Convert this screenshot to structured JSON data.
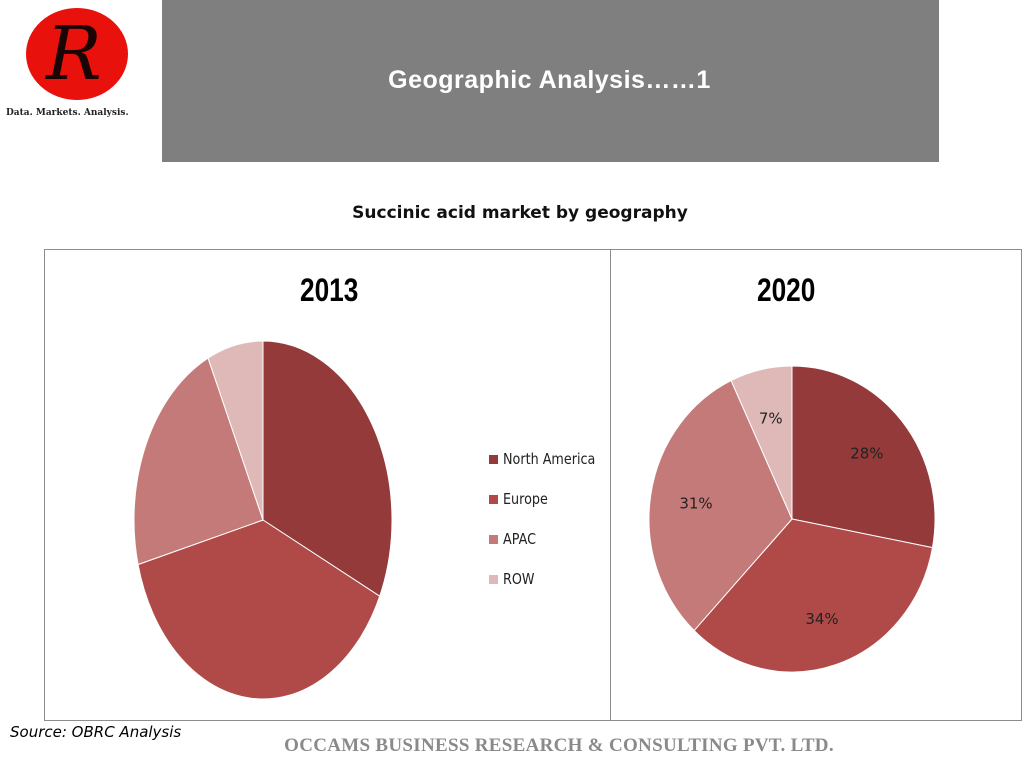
{
  "logo": {
    "letter": "R",
    "tagline": "Data. Markets. Analysis."
  },
  "header": {
    "title": "Geographic Analysis……1"
  },
  "subtitle": "Succinic acid market by geography",
  "source": "Source: OBRC Analysis",
  "footer": "OCCAMS BUSINESS RESEARCH & CONSULTING PVT. LTD.",
  "chart_data": [
    {
      "type": "pie",
      "title": "2013",
      "categories": [
        "North America",
        "Europe",
        "APAC",
        "ROW"
      ],
      "values": [
        32,
        39,
        22,
        7
      ],
      "data_labels": false,
      "colors": [
        "#943a3a",
        "#b04a48",
        "#c47a78",
        "#dfb9b8"
      ],
      "legend": {
        "entries": [
          "North America",
          "Europe",
          "APAC",
          "ROW"
        ],
        "position": "right"
      }
    },
    {
      "type": "pie",
      "title": "2020",
      "categories": [
        "North America",
        "Europe",
        "APAC",
        "ROW"
      ],
      "values": [
        28,
        34,
        31,
        7
      ],
      "data_labels": true,
      "labels": [
        "28%",
        "34%",
        "31%",
        "7%"
      ],
      "colors": [
        "#943a3a",
        "#b04a48",
        "#c47a78",
        "#dfb9b8"
      ]
    }
  ]
}
